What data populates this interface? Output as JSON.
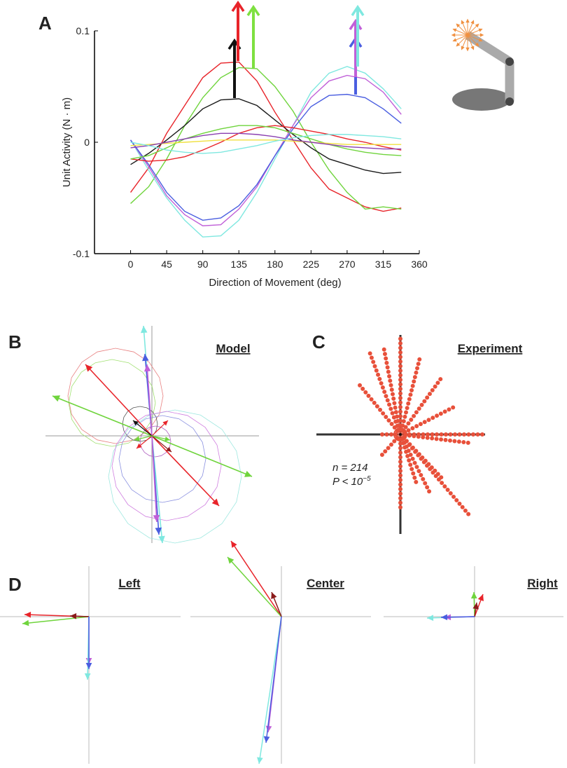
{
  "chart_data": {
    "type": "line",
    "panel_label": "A",
    "xlabel": "Direction of Movement (deg)",
    "ylabel": "Unit Activity (N · m)",
    "x": [
      0,
      22.5,
      45,
      67.5,
      90,
      112.5,
      135,
      157.5,
      180,
      202.5,
      225,
      247.5,
      270,
      292.5,
      315,
      337.5
    ],
    "xlim": [
      -45,
      360
    ],
    "xticks": [
      0,
      45,
      90,
      135,
      180,
      225,
      270,
      315,
      360
    ],
    "ylim": [
      -0.1,
      0.1
    ],
    "yticks": [
      -0.1,
      0,
      0.1
    ],
    "series": [
      {
        "color": "#e8242a",
        "values": [
          -0.045,
          -0.023,
          0.008,
          0.033,
          0.058,
          0.071,
          0.072,
          0.055,
          0.027,
          0.002,
          -0.023,
          -0.042,
          -0.05,
          -0.058,
          -0.062,
          -0.059
        ]
      },
      {
        "color": "#6fd43c",
        "values": [
          -0.055,
          -0.04,
          -0.015,
          0.015,
          0.04,
          0.058,
          0.067,
          0.066,
          0.05,
          0.028,
          0.0,
          -0.025,
          -0.045,
          -0.06,
          -0.058,
          -0.06
        ]
      },
      {
        "color": "#1a1a1a",
        "values": [
          -0.02,
          -0.01,
          0.002,
          0.015,
          0.03,
          0.038,
          0.039,
          0.033,
          0.02,
          0.007,
          -0.005,
          -0.015,
          -0.02,
          -0.025,
          -0.028,
          -0.027
        ]
      },
      {
        "color": "#7fe8e0",
        "values": [
          0.002,
          -0.025,
          -0.05,
          -0.07,
          -0.085,
          -0.084,
          -0.07,
          -0.045,
          -0.015,
          0.015,
          0.045,
          0.062,
          0.068,
          0.062,
          0.048,
          0.03
        ]
      },
      {
        "color": "#c060d8",
        "values": [
          0.002,
          -0.022,
          -0.048,
          -0.065,
          -0.075,
          -0.074,
          -0.06,
          -0.04,
          -0.012,
          0.015,
          0.04,
          0.055,
          0.06,
          0.057,
          0.045,
          0.025
        ]
      },
      {
        "color": "#4a5ee0",
        "values": [
          0.002,
          -0.02,
          -0.045,
          -0.062,
          -0.07,
          -0.068,
          -0.057,
          -0.038,
          -0.012,
          0.012,
          0.032,
          0.042,
          0.043,
          0.04,
          0.03,
          0.017
        ]
      },
      {
        "color": "#e8242a",
        "values": [
          -0.015,
          -0.017,
          -0.016,
          -0.013,
          -0.007,
          0.0,
          0.008,
          0.013,
          0.015,
          0.013,
          0.01,
          0.007,
          0.003,
          0.0,
          -0.004,
          -0.007
        ]
      },
      {
        "color": "#6fd43c",
        "values": [
          -0.015,
          -0.012,
          -0.005,
          0.003,
          0.008,
          0.012,
          0.015,
          0.015,
          0.013,
          0.008,
          0.003,
          -0.002,
          -0.006,
          -0.009,
          -0.011,
          -0.012
        ]
      },
      {
        "color": "#f0e040",
        "values": [
          -0.003,
          -0.002,
          -0.001,
          0.0,
          0.001,
          0.002,
          0.002,
          0.002,
          0.002,
          0.001,
          0.0,
          -0.001,
          -0.002,
          -0.002,
          -0.002,
          -0.002
        ]
      },
      {
        "color": "#8a3fb0",
        "values": [
          -0.005,
          -0.003,
          0.0,
          0.003,
          0.006,
          0.008,
          0.008,
          0.007,
          0.005,
          0.002,
          0.0,
          -0.002,
          -0.004,
          -0.005,
          -0.006,
          -0.006
        ]
      },
      {
        "color": "#7fe8e0",
        "values": [
          0.0,
          -0.003,
          -0.007,
          -0.009,
          -0.01,
          -0.009,
          -0.006,
          -0.003,
          0.001,
          0.004,
          0.006,
          0.007,
          0.007,
          0.006,
          0.005,
          0.003
        ]
      }
    ]
  },
  "panels": [
    {
      "label": "B",
      "title": "Model"
    },
    {
      "label": "C",
      "title": "Experiment",
      "n_label": "n = 214",
      "p_label": "P < 10",
      "p_exponent": "−5"
    },
    {
      "label": "D",
      "subtitles": [
        "Left",
        "Center",
        "Right"
      ]
    }
  ]
}
